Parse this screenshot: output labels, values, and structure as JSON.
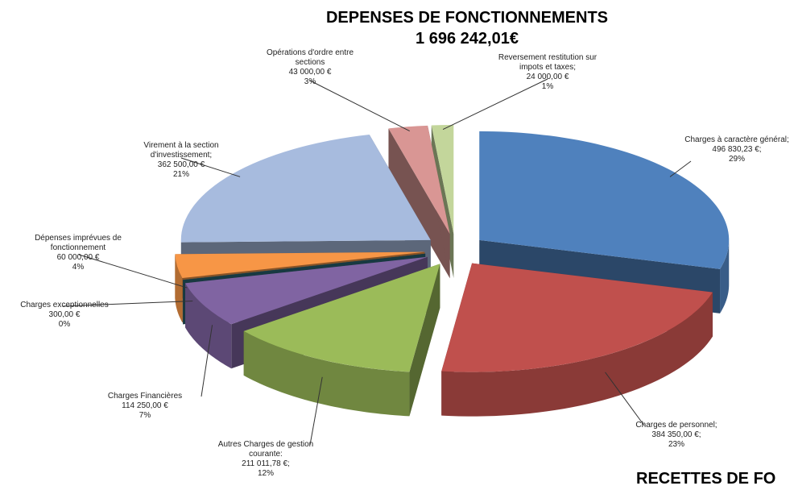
{
  "chart_data": {
    "type": "pie",
    "title": "DEPENSES DE FONCTIONNEMENTS",
    "subtitle": "1 696 242,01€",
    "footer_text": "RECETTES DE FO",
    "categories": [
      "Charges à caractère général;",
      "Charges de personnel;",
      "Autres Charges de gestion courante:",
      "Charges Financières",
      "Charges exceptionnelles",
      "Dépenses imprévues de fonctionnement",
      "Virement à la section d'investissement;",
      "Opérations d'ordre entre sections",
      "Reversement restitution sur impots et taxes;"
    ],
    "values": [
      496830.23,
      384350,
      211011.78,
      114250,
      300,
      60000,
      362500,
      43000,
      24000
    ],
    "value_labels": [
      "496 830,23 €;",
      "384 350,00 €;",
      "211 011,78 €;",
      "114 250,00 €",
      "300,00 €",
      "60 000,00 €",
      "362 500,00 €",
      "43 000,00 €",
      "24 000,00 €"
    ],
    "percent_labels": [
      "29%",
      "23%",
      "12%",
      "7%",
      "0%",
      "4%",
      "21%",
      "3%",
      "1%"
    ],
    "colors": [
      "#4f81bd",
      "#c0504d",
      "#9bbb59",
      "#8064a2",
      "#2b6877",
      "#f79646",
      "#a7bbde",
      "#d99694",
      "#c3d69b"
    ]
  }
}
